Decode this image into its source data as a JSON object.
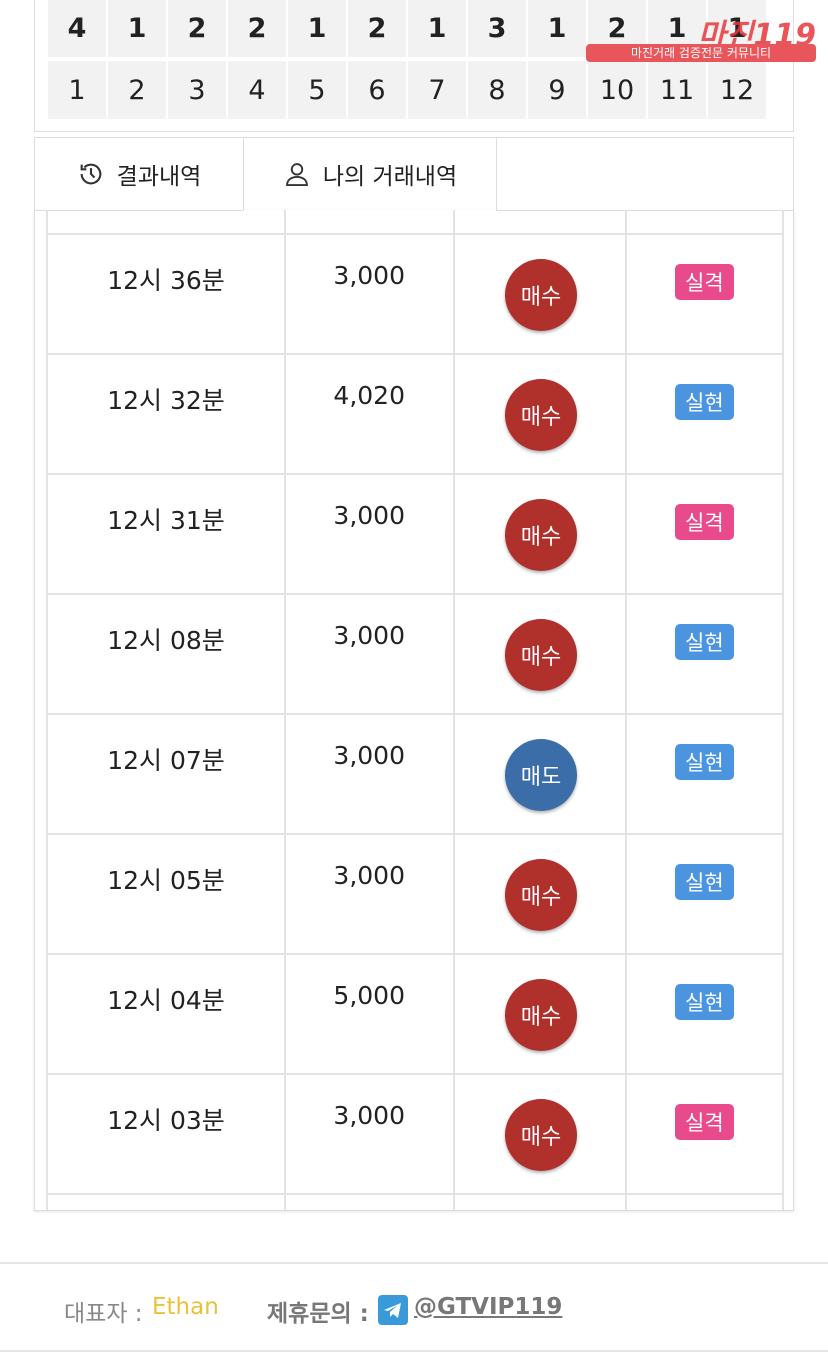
{
  "grid": {
    "rows": [
      [
        4,
        1,
        2,
        2,
        1,
        2,
        1,
        3,
        1,
        2,
        1,
        1
      ],
      [
        1,
        2,
        3,
        4,
        5,
        6,
        7,
        8,
        9,
        10,
        11,
        12
      ]
    ]
  },
  "logo": {
    "title": "마진119",
    "subtitle": "마진거래 검증전문 커뮤니티"
  },
  "tabs": [
    "결과내역",
    "나의 거래내역"
  ],
  "trades": [
    {
      "time": "12시 36분",
      "amount": "3,000",
      "side": "매수",
      "side_color": "#b0302c",
      "result": "실격",
      "result_color": "#e84a8b"
    },
    {
      "time": "12시 32분",
      "amount": "4,020",
      "side": "매수",
      "side_color": "#b0302c",
      "result": "실현",
      "result_color": "#4a94e0"
    },
    {
      "time": "12시 31분",
      "amount": "3,000",
      "side": "매수",
      "side_color": "#b0302c",
      "result": "실격",
      "result_color": "#e84a8b"
    },
    {
      "time": "12시 08분",
      "amount": "3,000",
      "side": "매수",
      "side_color": "#b0302c",
      "result": "실현",
      "result_color": "#4a94e0"
    },
    {
      "time": "12시 07분",
      "amount": "3,000",
      "side": "매도",
      "side_color": "#3b6ea8",
      "result": "실현",
      "result_color": "#4a94e0"
    },
    {
      "time": "12시 05분",
      "amount": "3,000",
      "side": "매수",
      "side_color": "#b0302c",
      "result": "실현",
      "result_color": "#4a94e0"
    },
    {
      "time": "12시 04분",
      "amount": "5,000",
      "side": "매수",
      "side_color": "#b0302c",
      "result": "실현",
      "result_color": "#4a94e0"
    },
    {
      "time": "12시 03분",
      "amount": "3,000",
      "side": "매수",
      "side_color": "#b0302c",
      "result": "실격",
      "result_color": "#e84a8b"
    }
  ],
  "footer": {
    "ceo_label": "대표자 :",
    "ceo": "Ethan",
    "contact_label": "제휴문의 :",
    "contact": "@GTVIP119"
  }
}
